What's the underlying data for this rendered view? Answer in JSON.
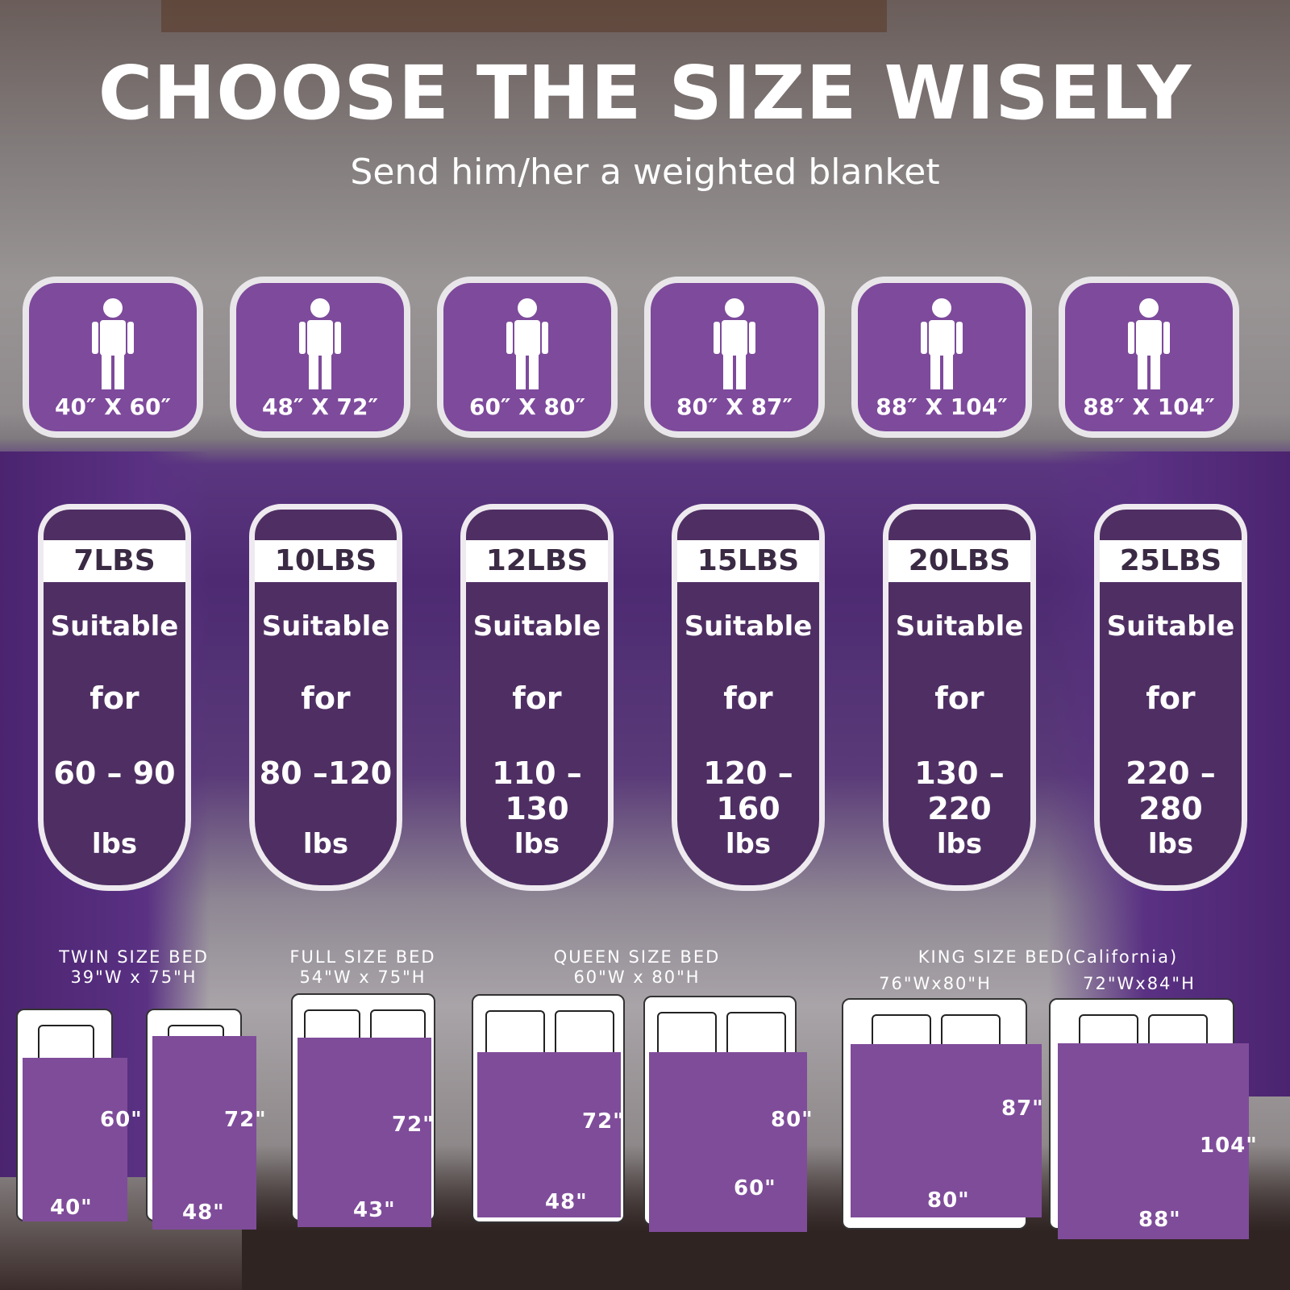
{
  "title": "CHOOSE THE SIZE WISELY",
  "subtitle": "Send him/her a weighted blanket",
  "colors": {
    "purple": "#7e4a9c",
    "dark_purple": "#4f2f63",
    "white": "#ffffff"
  },
  "sizes": [
    "40″ X 60″",
    "48″ X 72″",
    "60″ X 80″",
    "80″ X 87″",
    "88″ X 104″",
    "88″ X 104″"
  ],
  "weights": [
    {
      "weight": "7LBS",
      "l1": "Suitable",
      "l2": "for",
      "range": "60 – 90",
      "unit": "lbs"
    },
    {
      "weight": "10LBS",
      "l1": "Suitable",
      "l2": "for",
      "range": "80 –120",
      "unit": "lbs"
    },
    {
      "weight": "12LBS",
      "l1": "Suitable",
      "l2": "for",
      "range": "110 –130",
      "unit": "lbs"
    },
    {
      "weight": "15LBS",
      "l1": "Suitable",
      "l2": "for",
      "range": "120 –160",
      "unit": "lbs"
    },
    {
      "weight": "20LBS",
      "l1": "Suitable",
      "l2": "for",
      "range": "130 – 220",
      "unit": "lbs"
    },
    {
      "weight": "25LBS",
      "l1": "Suitable",
      "l2": "for",
      "range": "220 – 280",
      "unit": "lbs"
    }
  ],
  "bed_titles": [
    {
      "name": "TWIN SIZE BED",
      "dims": "39\"W x 75\"H"
    },
    {
      "name": "FULL SIZE BED",
      "dims": "54\"W x 75\"H"
    },
    {
      "name": "QUEEN SIZE BED",
      "dims": "60\"W x 80\"H"
    },
    {
      "name": "KING SIZE BED(California)",
      "dims": ""
    }
  ],
  "king_dims": [
    "76\"Wx80\"H",
    "72\"Wx84\"H"
  ],
  "beds": [
    {
      "height": "60\"",
      "width": "40\"",
      "pillows": 1
    },
    {
      "height": "72\"",
      "width": "48\"",
      "pillows": 1
    },
    {
      "height": "72\"",
      "width": "43\"",
      "pillows": 2
    },
    {
      "height": "72\"",
      "width": "48\"",
      "pillows": 2
    },
    {
      "height": "80\"",
      "width": "60\"",
      "pillows": 2
    },
    {
      "height": "87\"",
      "width": "80\"",
      "pillows": 2
    },
    {
      "height": "104\"",
      "width": "88\"",
      "pillows": 2
    }
  ]
}
